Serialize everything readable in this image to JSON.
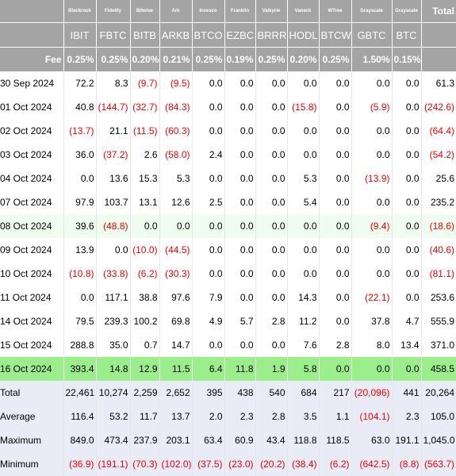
{
  "header": {
    "issuers": [
      "Blackrock",
      "Fidelity",
      "Bitwise",
      "Ark",
      "Invesco",
      "Franklin",
      "Valkyrie",
      "Vaneck",
      "WTree",
      "Grayscale",
      "Grayscale",
      "Total"
    ],
    "tickers": [
      "IBIT",
      "FBTC",
      "BITB",
      "ARKB",
      "BTCO",
      "EZBC",
      "BRRR",
      "HODL",
      "BTCW",
      "GBTC",
      "BTC"
    ],
    "fee_label": "Fee",
    "fees": [
      "0.25%",
      "0.25%",
      "0.20%",
      "0.21%",
      "0.25%",
      "0.19%",
      "0.25%",
      "0.20%",
      "0.25%",
      "1.50%",
      "0.15%"
    ]
  },
  "rows": [
    {
      "date": "30 Sep 2024",
      "values": [
        "72.2",
        "8.3",
        "(9.7)",
        "(9.5)",
        "0.0",
        "0.0",
        "0.0",
        "0.0",
        "0.0",
        "0.0",
        "0.0",
        "61.3"
      ]
    },
    {
      "date": "01 Oct 2024",
      "values": [
        "40.8",
        "(144.7)",
        "(32.7)",
        "(84.3)",
        "0.0",
        "0.0",
        "0.0",
        "(15.8)",
        "0.0",
        "(5.9)",
        "0.0",
        "(242.6)"
      ]
    },
    {
      "date": "02 Oct 2024",
      "values": [
        "(13.7)",
        "21.1",
        "(11.5)",
        "(60.3)",
        "0.0",
        "0.0",
        "0.0",
        "0.0",
        "0.0",
        "0.0",
        "0.0",
        "(64.4)"
      ]
    },
    {
      "date": "03 Oct 2024",
      "values": [
        "36.0",
        "(37.2)",
        "2.6",
        "(58.0)",
        "2.4",
        "0.0",
        "0.0",
        "0.0",
        "0.0",
        "0.0",
        "0.0",
        "(54.2)"
      ]
    },
    {
      "date": "04 Oct 2024",
      "values": [
        "0.0",
        "13.6",
        "15.3",
        "5.3",
        "0.0",
        "0.0",
        "0.0",
        "5.3",
        "0.0",
        "(13.9)",
        "0.0",
        "25.6"
      ]
    },
    {
      "date": "07 Oct 2024",
      "values": [
        "97.9",
        "103.7",
        "13.1",
        "12.6",
        "2.5",
        "0.0",
        "0.0",
        "5.4",
        "0.0",
        "0.0",
        "0.0",
        "235.2"
      ]
    },
    {
      "date": "08 Oct 2024",
      "values": [
        "39.6",
        "(48.8)",
        "0.0",
        "0.0",
        "0.0",
        "0.0",
        "0.0",
        "0.0",
        "0.0",
        "(9.4)",
        "0.0",
        "(18.6)"
      ]
    },
    {
      "date": "09 Oct 2024",
      "values": [
        "13.9",
        "0.0",
        "(10.0)",
        "(44.5)",
        "0.0",
        "0.0",
        "0.0",
        "0.0",
        "0.0",
        "0.0",
        "0.0",
        "(40.6)"
      ]
    },
    {
      "date": "10 Oct 2024",
      "values": [
        "(10.8)",
        "(33.8)",
        "(6.2)",
        "(30.3)",
        "0.0",
        "0.0",
        "0.0",
        "0.0",
        "0.0",
        "0.0",
        "0.0",
        "(81.1)"
      ]
    },
    {
      "date": "11 Oct 2024",
      "values": [
        "0.0",
        "117.1",
        "38.8",
        "97.6",
        "7.9",
        "0.0",
        "0.0",
        "14.3",
        "0.0",
        "(22.1)",
        "0.0",
        "253.6"
      ]
    },
    {
      "date": "14 Oct 2024",
      "values": [
        "79.5",
        "239.3",
        "100.2",
        "69.8",
        "4.9",
        "5.7",
        "2.8",
        "11.2",
        "0.0",
        "37.8",
        "4.7",
        "555.9"
      ]
    },
    {
      "date": "15 Oct 2024",
      "values": [
        "288.8",
        "35.0",
        "0.7",
        "14.7",
        "0.0",
        "0.0",
        "0.0",
        "7.6",
        "2.8",
        "8.0",
        "13.4",
        "371.0"
      ]
    },
    {
      "date": "16 Oct 2024",
      "values": [
        "393.4",
        "14.8",
        "12.9",
        "11.5",
        "6.4",
        "11.8",
        "1.9",
        "5.8",
        "0.0",
        "0.0",
        "0.0",
        "458.5"
      ]
    }
  ],
  "summary": [
    {
      "label": "Total",
      "values": [
        "22,461",
        "10,274",
        "2,259",
        "2,652",
        "395",
        "438",
        "540",
        "684",
        "217",
        "(20,096)",
        "441",
        "20,264"
      ]
    },
    {
      "label": "Average",
      "values": [
        "116.4",
        "53.2",
        "11.7",
        "13.7",
        "2.0",
        "2.3",
        "2.8",
        "3.5",
        "1.1",
        "(104.1)",
        "2.3",
        "105.0"
      ]
    },
    {
      "label": "Maximum",
      "values": [
        "849.0",
        "473.4",
        "237.9",
        "203.1",
        "63.4",
        "60.9",
        "43.4",
        "118.8",
        "118.5",
        "63.0",
        "191.1",
        "1,045.0"
      ]
    },
    {
      "label": "Minimum",
      "values": [
        "(36.9)",
        "(191.1)",
        "(70.3)",
        "(102.0)",
        "(37.5)",
        "(23.0)",
        "(20.2)",
        "(38.4)",
        "(6.2)",
        "(642.5)",
        "(8.8)",
        "(563.7)"
      ]
    }
  ]
}
